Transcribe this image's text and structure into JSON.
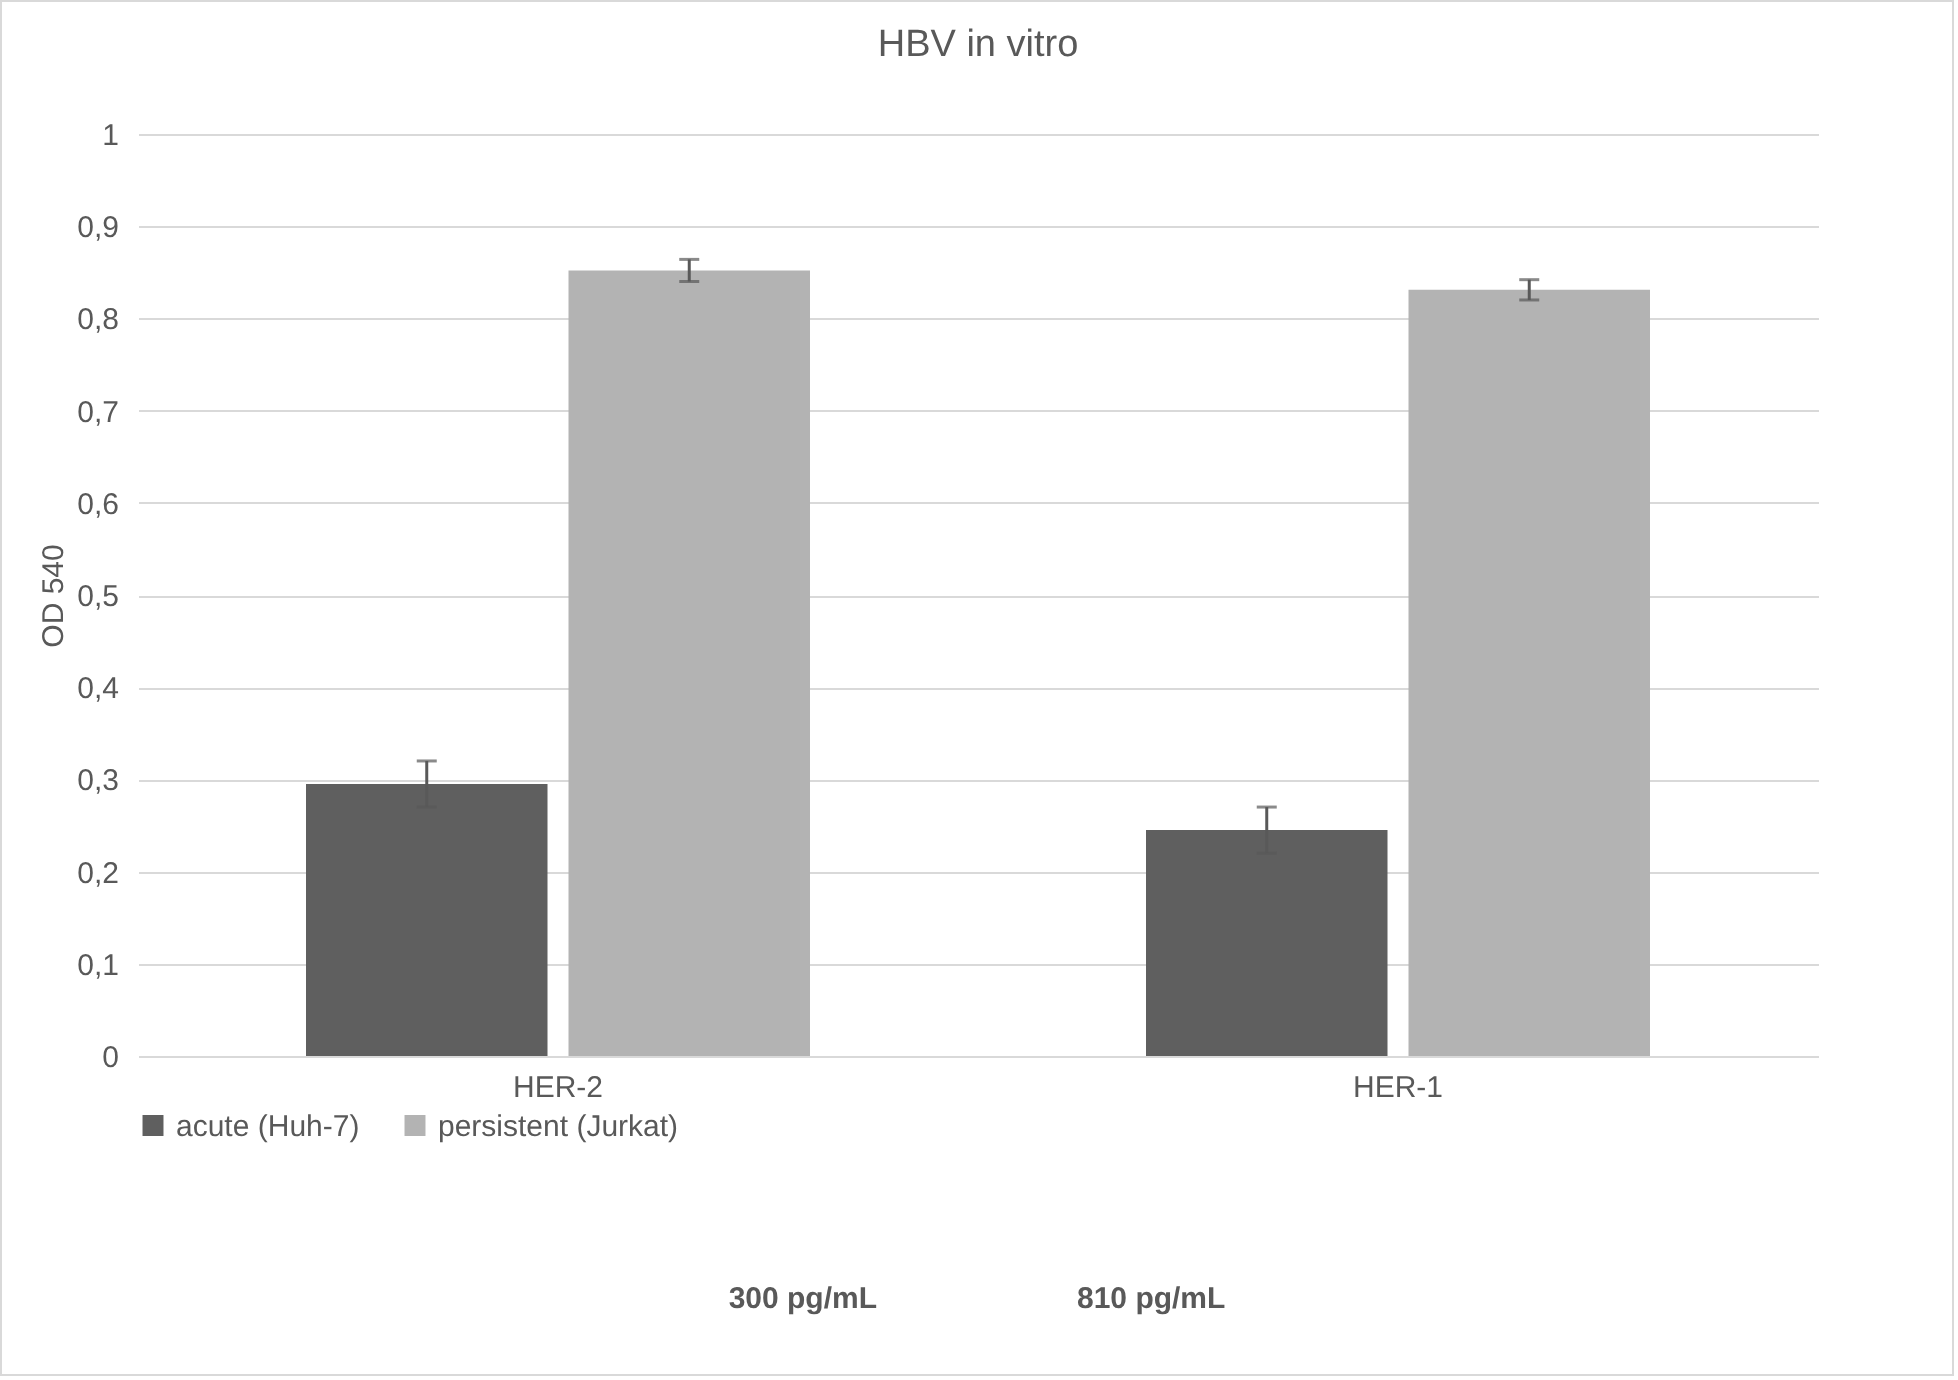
{
  "chart_data": {
    "type": "bar",
    "title": "HBV in vitro",
    "ylabel": "OD 540",
    "categories": [
      "HER-2",
      "HER-1"
    ],
    "series": [
      {
        "name": "acute (Huh-7)",
        "color": "#5f5f5f",
        "values": [
          0.295,
          0.245
        ],
        "errors": [
          0.025,
          0.025
        ]
      },
      {
        "name": "persistent (Jurkat)",
        "color": "#b3b3b3",
        "values": [
          0.852,
          0.831
        ],
        "errors": [
          0.012,
          0.011
        ]
      }
    ],
    "ylim": [
      0,
      1
    ],
    "yticks": [
      0,
      {
        "value": 0.1,
        "label": "0,1"
      },
      {
        "value": 0.2,
        "label": "0,2"
      },
      {
        "value": 0.3,
        "label": "0,3"
      },
      {
        "value": 0.4,
        "label": "0,4"
      },
      {
        "value": 0.5,
        "label": "0,5"
      },
      {
        "value": 0.6,
        "label": "0,6"
      },
      {
        "value": 0.7,
        "label": "0,7"
      },
      {
        "value": 0.8,
        "label": "0,8"
      },
      {
        "value": 0.9,
        "label": "0,9"
      },
      1
    ],
    "grid": "y",
    "legend": "bottom",
    "annotations": [
      "300 pg/mL",
      "810 pg/mL"
    ]
  }
}
